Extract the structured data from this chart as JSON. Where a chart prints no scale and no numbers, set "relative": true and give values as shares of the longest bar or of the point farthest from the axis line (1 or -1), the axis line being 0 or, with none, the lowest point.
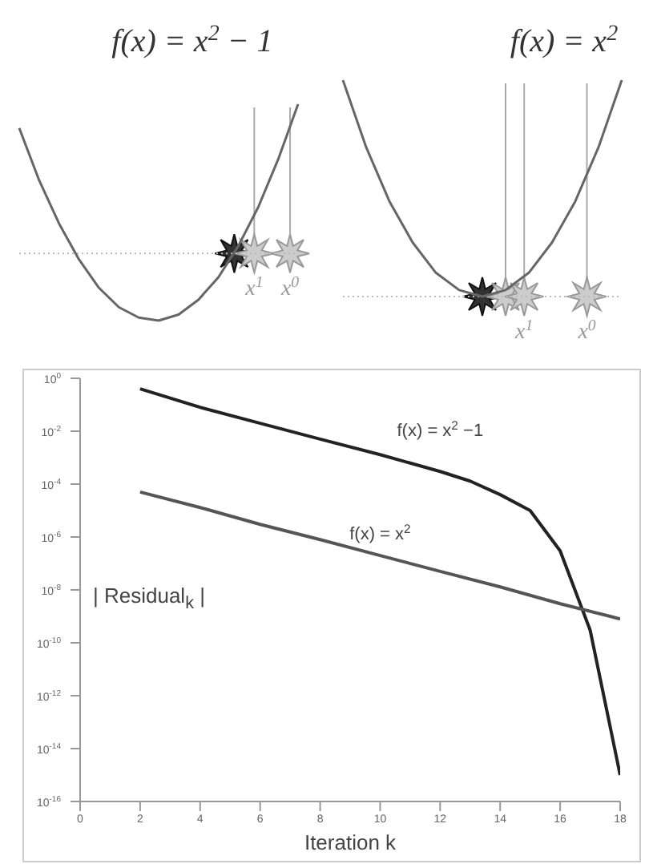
{
  "chart_data": [
    {
      "type": "line",
      "relative": true,
      "title": "f(x) = x$^{2}$ − 1",
      "annotations": [
        "x$^{1}$",
        "x$^{0}$"
      ],
      "categories": [
        null,
        null,
        null,
        null,
        null,
        null,
        null,
        null,
        null,
        null,
        null,
        null,
        null,
        null,
        null
      ],
      "ref_lines": [
        {
          "axis": "y",
          "value": 0,
          "color": "#bbbbbb",
          "line_style": "dotted"
        }
      ],
      "series": [
        {
          "color": "#666666",
          "values": [
            0.84,
            0.49,
            0.2,
            -0.04,
            -0.23,
            -0.36,
            -0.43,
            -0.45,
            -0.41,
            -0.31,
            -0.16,
            0.05,
            0.31,
            0.63,
            1
          ]
        }
      ]
    },
    {
      "type": "line",
      "relative": true,
      "title": "f(x) = x$^{2}$",
      "annotations": [
        "x$^{1}$",
        "x$^{0}$"
      ],
      "categories": [
        null,
        null,
        null,
        null,
        null,
        null,
        null,
        null,
        null,
        null,
        null,
        null,
        null
      ],
      "ref_lines": [
        {
          "axis": "y",
          "value": 0,
          "color": "#bbbbbb",
          "line_style": "dotted"
        }
      ],
      "series": [
        {
          "color": "#666666",
          "values": [
            1,
            0.69,
            0.44,
            0.25,
            0.11,
            0.03,
            0,
            0.03,
            0.11,
            0.25,
            0.44,
            0.69,
            1
          ]
        }
      ]
    },
    {
      "type": "line",
      "xlabel": "Iteration k",
      "ylabel": "| Residual$_{k}$ |",
      "log": true,
      "marker": "none",
      "xlim": [
        0,
        18
      ],
      "xticks": [
        0,
        2,
        4,
        6,
        8,
        10,
        12,
        14,
        16,
        18
      ],
      "ylim": [
        1e-16,
        1
      ],
      "yticks": [
        {
          "value": 1e-16,
          "label": "10$^{-16}$"
        },
        {
          "value": 1e-14,
          "label": "10$^{-14}$"
        },
        {
          "value": 1e-12,
          "label": "10$^{-12}$"
        },
        {
          "value": 1e-10,
          "label": "10$^{-10}$"
        },
        {
          "value": 1e-08,
          "label": "10$^{-8}$"
        },
        {
          "value": 1e-06,
          "label": "10$^{-6}$"
        },
        {
          "value": 0.0001,
          "label": "10$^{-4}$"
        },
        {
          "value": 0.01,
          "label": "10$^{-2}$"
        },
        {
          "value": 1,
          "label": "10$^{0}$"
        }
      ],
      "x": [
        2,
        4,
        6,
        8,
        10,
        12,
        13,
        14,
        15,
        16,
        17,
        18
      ],
      "series": [
        {
          "name": "f(x) = x$^{2}$ −1",
          "color": "#222222",
          "values": [
            0.4,
            0.08,
            0.02,
            0.005,
            0.0013,
            0.0003,
            0.00013,
            4e-05,
            1e-05,
            3e-07,
            3e-10,
            1e-15
          ]
        },
        {
          "name": "f(x) = x$^{2}$",
          "color": "#555555",
          "x": [
            2,
            4,
            6,
            8,
            10,
            12,
            14,
            16,
            18
          ],
          "values": [
            5e-05,
            1.3e-05,
            3e-06,
            8e-07,
            2e-07,
            5e-08,
            1.3e-08,
            3e-09,
            8e-10
          ]
        }
      ]
    }
  ]
}
